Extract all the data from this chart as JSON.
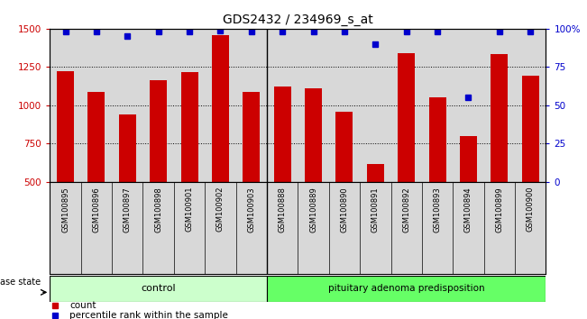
{
  "title": "GDS2432 / 234969_s_at",
  "samples": [
    "GSM100895",
    "GSM100896",
    "GSM100897",
    "GSM100898",
    "GSM100901",
    "GSM100902",
    "GSM100903",
    "GSM100888",
    "GSM100889",
    "GSM100890",
    "GSM100891",
    "GSM100892",
    "GSM100893",
    "GSM100894",
    "GSM100899",
    "GSM100900"
  ],
  "counts": [
    1220,
    1085,
    940,
    1165,
    1215,
    1460,
    1085,
    1120,
    1110,
    960,
    615,
    1340,
    1050,
    800,
    1335,
    1195
  ],
  "percentiles": [
    98,
    98,
    95,
    98,
    98,
    99,
    98,
    98,
    98,
    98,
    90,
    98,
    98,
    55,
    98,
    98
  ],
  "bar_color": "#cc0000",
  "dot_color": "#0000cc",
  "ylim_left": [
    500,
    1500
  ],
  "ylim_right": [
    0,
    100
  ],
  "yticks_left": [
    500,
    750,
    1000,
    1250,
    1500
  ],
  "yticks_right": [
    0,
    25,
    50,
    75,
    100
  ],
  "ytick_labels_right": [
    "0",
    "25",
    "50",
    "75",
    "100%"
  ],
  "control_samples": 7,
  "control_label": "control",
  "disease_label": "pituitary adenoma predisposition",
  "disease_state_label": "disease state",
  "group_control_color": "#ccffcc",
  "group_disease_color": "#66ff66",
  "legend_count_label": "count",
  "legend_percentile_label": "percentile rank within the sample",
  "background_color": "#ffffff",
  "axis_bg_color": "#d8d8d8",
  "grid_color": "#000000",
  "title_fontsize": 10,
  "tick_fontsize": 7.5,
  "bar_width": 0.55,
  "fig_width": 6.51,
  "fig_height": 3.54,
  "dpi": 100
}
